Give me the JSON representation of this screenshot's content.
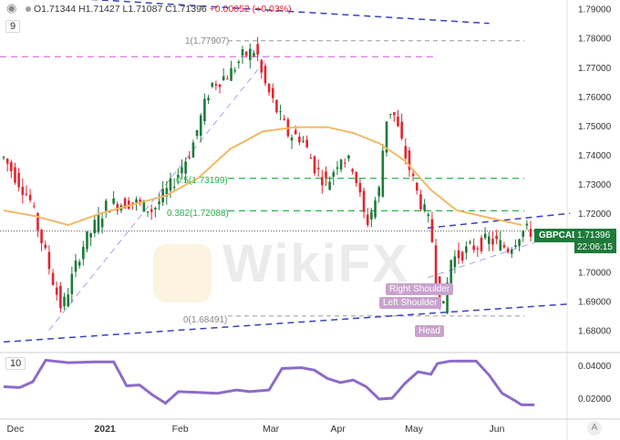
{
  "header": {
    "ohlc_text": "O1.71344 H1.71427 L1.71087 C1.71396 ",
    "change_text": "+0.00052 (+0.03%)",
    "ma_period": "9",
    "atr_period": "10"
  },
  "symbol": {
    "name": "GBPCAD",
    "last_price": "1.71396",
    "countdown": "22:06:15"
  },
  "watermark": "WikiFX",
  "annotations": {
    "right_shoulder": "Right Shoulder",
    "left_shoulder": "Left Shoulder",
    "head": "Head"
  },
  "fib": {
    "l1": "1(1.77907)",
    "l05": "0.5(1.73199)",
    "l382": "0.382(1.72088)",
    "l0": "0(1.68491)"
  },
  "colors": {
    "up": "#1f7a3b",
    "down": "#e0262f",
    "ma": "#f2b865",
    "atr": "#8c6bc8",
    "trend": "#3b3fc2",
    "fib_green": "#23b14d",
    "resistance_violet": "#d873e0"
  },
  "chart_data": [
    {
      "type": "candlestick",
      "title": "GBPCAD",
      "x_ticks": [
        "Dec",
        "2021",
        "Feb",
        "Mar",
        "Apr",
        "May",
        "Jun"
      ],
      "y_ticks": [
        "1.79000",
        "1.78000",
        "1.77000",
        "1.76000",
        "1.75000",
        "1.74000",
        "1.73000",
        "1.72000",
        "1.70000",
        "1.69000",
        "1.68000"
      ],
      "ylim": [
        1.673,
        1.793
      ],
      "n_bars": 140,
      "price_path": [
        [
          0,
          1.739
        ],
        [
          8,
          1.725
        ],
        [
          16,
          1.694
        ],
        [
          18,
          1.687
        ],
        [
          24,
          1.708
        ],
        [
          32,
          1.723
        ],
        [
          40,
          1.724
        ],
        [
          46,
          1.721
        ],
        [
          52,
          1.73
        ],
        [
          58,
          1.742
        ],
        [
          64,
          1.764
        ],
        [
          70,
          1.768
        ],
        [
          74,
          1.774
        ],
        [
          78,
          1.776
        ],
        [
          80,
          1.766
        ],
        [
          84,
          1.756
        ],
        [
          88,
          1.747
        ],
        [
          92,
          1.746
        ],
        [
          96,
          1.736
        ],
        [
          100,
          1.73
        ],
        [
          104,
          1.74
        ],
        [
          108,
          1.736
        ],
        [
          112,
          1.716
        ],
        [
          116,
          1.728
        ],
        [
          118,
          1.752
        ],
        [
          120,
          1.756
        ],
        [
          124,
          1.74
        ],
        [
          128,
          1.726
        ],
        [
          132,
          1.715
        ],
        [
          134,
          1.692
        ],
        [
          136,
          1.687
        ],
        [
          138,
          1.704
        ],
        [
          144,
          1.708
        ],
        [
          150,
          1.711
        ],
        [
          156,
          1.708
        ],
        [
          160,
          1.714
        ],
        [
          164,
          1.7139
        ]
      ],
      "moving_average": [
        [
          0,
          1.721
        ],
        [
          10,
          1.719
        ],
        [
          20,
          1.716
        ],
        [
          30,
          1.72
        ],
        [
          40,
          1.723
        ],
        [
          50,
          1.726
        ],
        [
          60,
          1.732
        ],
        [
          70,
          1.742
        ],
        [
          80,
          1.748
        ],
        [
          90,
          1.7495
        ],
        [
          100,
          1.7495
        ],
        [
          108,
          1.7475
        ],
        [
          116,
          1.744
        ],
        [
          124,
          1.738
        ],
        [
          132,
          1.728
        ],
        [
          140,
          1.721
        ],
        [
          150,
          1.7185
        ],
        [
          160,
          1.716
        ]
      ],
      "levels": {
        "fib_1": 1.77907,
        "fib_0.5": 1.73199,
        "fib_0.382": 1.72088,
        "fib_0": 1.68491,
        "resistance": 1.7736,
        "last": 1.71396
      },
      "trendlines": [
        {
          "from": [
            0,
            1.795
          ],
          "to": [
            150,
            1.785
          ]
        },
        {
          "from": [
            0,
            1.676
          ],
          "to": [
            175,
            1.689
          ]
        },
        {
          "from": [
            131,
            1.715
          ],
          "to": [
            175,
            1.72
          ]
        },
        {
          "from": [
            131,
            1.698
          ],
          "to": [
            164,
            1.71
          ]
        },
        {
          "from": [
            14,
            1.68
          ],
          "to": [
            82,
            1.774
          ]
        }
      ]
    },
    {
      "type": "line",
      "title": "ATR 10",
      "y_ticks": [
        "0.04000",
        "0.02000"
      ],
      "ylim": [
        0.0085,
        0.046
      ],
      "values_path": [
        [
          0,
          0.027
        ],
        [
          5,
          0.0265
        ],
        [
          9,
          0.03
        ],
        [
          13,
          0.043
        ],
        [
          20,
          0.0415
        ],
        [
          28,
          0.042
        ],
        [
          34,
          0.042
        ],
        [
          38,
          0.0275
        ],
        [
          42,
          0.028
        ],
        [
          46,
          0.022
        ],
        [
          50,
          0.017
        ],
        [
          54,
          0.024
        ],
        [
          60,
          0.0235
        ],
        [
          66,
          0.023
        ],
        [
          72,
          0.025
        ],
        [
          76,
          0.024
        ],
        [
          82,
          0.025
        ],
        [
          86,
          0.038
        ],
        [
          92,
          0.0385
        ],
        [
          96,
          0.037
        ],
        [
          100,
          0.032
        ],
        [
          104,
          0.0295
        ],
        [
          108,
          0.031
        ],
        [
          112,
          0.027
        ],
        [
          116,
          0.0195
        ],
        [
          120,
          0.02
        ],
        [
          124,
          0.029
        ],
        [
          128,
          0.036
        ],
        [
          132,
          0.0345
        ],
        [
          134,
          0.041
        ],
        [
          138,
          0.0425
        ],
        [
          146,
          0.0425
        ],
        [
          150,
          0.034
        ],
        [
          154,
          0.023
        ],
        [
          158,
          0.0185
        ],
        [
          160,
          0.016
        ],
        [
          164,
          0.016
        ]
      ]
    }
  ]
}
